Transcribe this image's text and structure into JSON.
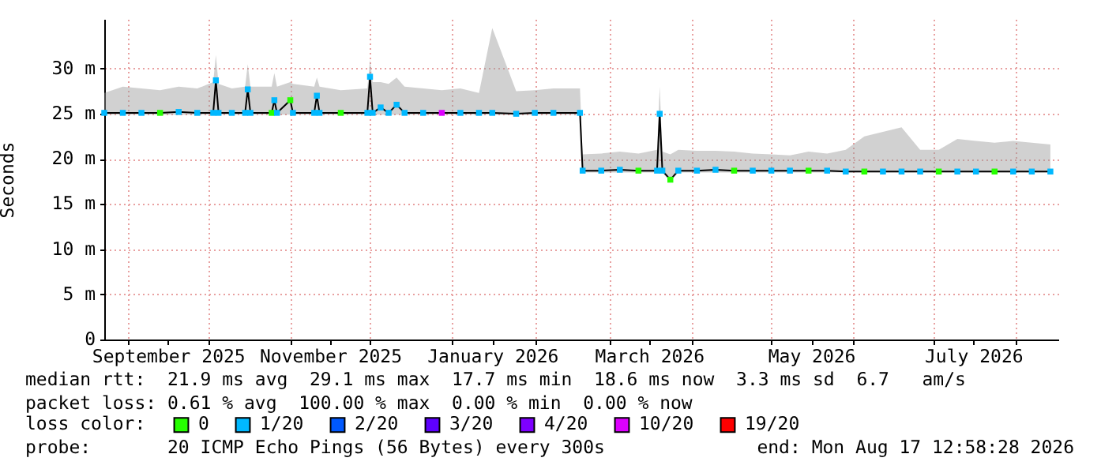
{
  "chart_data": {
    "type": "line",
    "ylabel": "Seconds",
    "x": [
      "2025-08-23",
      "2025-08-30",
      "2025-09-06",
      "2025-09-13",
      "2025-09-20",
      "2025-09-27",
      "2025-10-03",
      "2025-10-04",
      "2025-10-05",
      "2025-10-10",
      "2025-10-15",
      "2025-10-16",
      "2025-10-17",
      "2025-10-25",
      "2025-10-26",
      "2025-10-27",
      "2025-11-01",
      "2025-11-02",
      "2025-11-10",
      "2025-11-11",
      "2025-11-12",
      "2025-11-20",
      "2025-11-30",
      "2025-12-01",
      "2025-12-02",
      "2025-12-05",
      "2025-12-08",
      "2025-12-11",
      "2025-12-14",
      "2025-12-21",
      "2025-12-28",
      "2026-01-04",
      "2026-01-11",
      "2026-01-16",
      "2026-01-25",
      "2026-02-01",
      "2026-02-08",
      "2026-02-18",
      "2026-02-19",
      "2026-02-26",
      "2026-03-05",
      "2026-03-12",
      "2026-03-19",
      "2026-03-20",
      "2026-03-21",
      "2026-03-24",
      "2026-03-27",
      "2026-04-03",
      "2026-04-10",
      "2026-04-17",
      "2026-04-24",
      "2026-05-01",
      "2026-05-08",
      "2026-05-15",
      "2026-05-22",
      "2026-05-29",
      "2026-06-05",
      "2026-06-12",
      "2026-06-19",
      "2026-06-26",
      "2026-07-03",
      "2026-07-10",
      "2026-07-17",
      "2026-07-24",
      "2026-07-31",
      "2026-08-07",
      "2026-08-14"
    ],
    "series": [
      {
        "type": "line",
        "color": "#000000",
        "marker": "none",
        "values": [
          25.1,
          25.1,
          25.1,
          25.1,
          25.2,
          25.1,
          25.1,
          28.7,
          25.1,
          25.1,
          25.1,
          27.7,
          25.1,
          25.1,
          26.5,
          25.1,
          26.5,
          25.1,
          25.1,
          27.0,
          25.1,
          25.1,
          25.1,
          29.1,
          25.1,
          25.7,
          25.1,
          26.0,
          25.1,
          25.1,
          25.1,
          25.1,
          25.1,
          25.1,
          25.0,
          25.1,
          25.1,
          25.1,
          18.7,
          18.7,
          18.8,
          18.7,
          18.7,
          25.0,
          18.7,
          17.7,
          18.7,
          18.7,
          18.8,
          18.7,
          18.7,
          18.7,
          18.7,
          18.7,
          18.7,
          18.6,
          18.6,
          18.6,
          18.6,
          18.6,
          18.6,
          18.6,
          18.6,
          18.6,
          18.6,
          18.6,
          18.6
        ],
        "lower": [
          24.9,
          24.9,
          24.9,
          24.9,
          24.9,
          24.9,
          24.9,
          24.9,
          24.9,
          24.9,
          24.9,
          24.9,
          24.9,
          24.9,
          24.9,
          24.9,
          24.9,
          24.9,
          24.9,
          24.9,
          24.9,
          24.9,
          24.9,
          24.9,
          24.9,
          24.9,
          24.9,
          24.9,
          24.9,
          24.9,
          24.9,
          24.9,
          24.9,
          24.9,
          24.9,
          24.9,
          24.9,
          24.9,
          18.5,
          18.5,
          18.5,
          18.5,
          18.5,
          18.5,
          18.5,
          17.5,
          18.5,
          18.5,
          18.5,
          18.5,
          18.5,
          18.5,
          18.5,
          18.5,
          18.5,
          18.5,
          18.5,
          18.5,
          18.5,
          18.5,
          18.5,
          18.5,
          18.5,
          18.5,
          18.5,
          18.5,
          18.5
        ],
        "upper": [
          27.3,
          28.0,
          27.8,
          27.6,
          28.0,
          27.8,
          28.5,
          31.5,
          28.3,
          27.8,
          28.0,
          30.5,
          28.0,
          28.0,
          29.5,
          28.0,
          28.5,
          28.3,
          28.0,
          29.0,
          28.0,
          27.6,
          27.8,
          31.0,
          28.5,
          28.5,
          28.3,
          29.0,
          28.0,
          27.8,
          27.6,
          27.8,
          27.3,
          34.5,
          27.5,
          27.6,
          27.8,
          27.8,
          20.5,
          20.6,
          20.8,
          20.6,
          21.0,
          28.0,
          20.8,
          20.5,
          21.0,
          20.9,
          20.9,
          20.8,
          20.6,
          20.5,
          20.4,
          20.8,
          20.6,
          21.0,
          22.5,
          23.0,
          23.5,
          21.0,
          21.0,
          22.2,
          22.0,
          21.8,
          22.0,
          21.8,
          21.6
        ]
      },
      {
        "type": "scatter",
        "name": "0",
        "color": "#26ff00",
        "x": [
          "2025-09-13",
          "2025-10-25",
          "2025-11-01",
          "2025-11-20",
          "2026-03-12",
          "2026-03-24",
          "2026-04-17",
          "2026-05-15",
          "2026-06-05",
          "2026-07-03",
          "2026-07-24"
        ],
        "values": [
          25.1,
          25.1,
          26.5,
          25.1,
          18.7,
          17.7,
          18.7,
          18.7,
          18.6,
          18.6,
          18.6
        ]
      },
      {
        "type": "scatter",
        "name": "1/20",
        "color": "#00b8ff",
        "x": [
          "2025-08-23",
          "2025-08-30",
          "2025-09-06",
          "2025-09-20",
          "2025-09-27",
          "2025-10-03",
          "2025-10-04",
          "2025-10-05",
          "2025-10-10",
          "2025-10-15",
          "2025-10-16",
          "2025-10-17",
          "2025-10-26",
          "2025-10-27",
          "2025-11-02",
          "2025-11-10",
          "2025-11-11",
          "2025-11-12",
          "2025-11-30",
          "2025-12-01",
          "2025-12-02",
          "2025-12-05",
          "2025-12-08",
          "2025-12-11",
          "2025-12-14",
          "2025-12-21",
          "2026-01-04",
          "2026-01-11",
          "2026-01-16",
          "2026-01-25",
          "2026-02-01",
          "2026-02-08",
          "2026-02-18",
          "2026-02-19",
          "2026-02-26",
          "2026-03-05",
          "2026-03-19",
          "2026-03-20",
          "2026-03-21",
          "2026-03-27",
          "2026-04-03",
          "2026-04-10",
          "2026-04-24",
          "2026-05-01",
          "2026-05-08",
          "2026-05-22",
          "2026-05-29",
          "2026-06-12",
          "2026-06-19",
          "2026-06-26",
          "2026-07-10",
          "2026-07-17",
          "2026-07-31",
          "2026-08-07",
          "2026-08-14"
        ],
        "values": [
          25.1,
          25.1,
          25.1,
          25.2,
          25.1,
          25.1,
          28.7,
          25.1,
          25.1,
          25.1,
          27.7,
          25.1,
          26.5,
          25.1,
          25.1,
          25.1,
          27.0,
          25.1,
          25.1,
          29.1,
          25.1,
          25.7,
          25.1,
          26.0,
          25.1,
          25.1,
          25.1,
          25.1,
          25.1,
          25.0,
          25.1,
          25.1,
          25.1,
          18.7,
          18.7,
          18.8,
          18.7,
          25.0,
          18.7,
          18.7,
          18.7,
          18.8,
          18.7,
          18.7,
          18.7,
          18.7,
          18.6,
          18.6,
          18.6,
          18.6,
          18.6,
          18.6,
          18.6,
          18.6,
          18.6
        ]
      },
      {
        "type": "scatter",
        "name": "2/20",
        "color": "#0059ff",
        "values": [
          null,
          null,
          null,
          null,
          null,
          null,
          null,
          null,
          null,
          null,
          null,
          null,
          null,
          null,
          null,
          null,
          null,
          null,
          null,
          null,
          null,
          null,
          null,
          null,
          null,
          null,
          null,
          null,
          null,
          null,
          null,
          null,
          null,
          null,
          null,
          null,
          null,
          null,
          null,
          null,
          null,
          null,
          null,
          null,
          null,
          null,
          null,
          null,
          null,
          null,
          null,
          null,
          null,
          null,
          null,
          null,
          null,
          null,
          null,
          null,
          null,
          null,
          null,
          null,
          null,
          null,
          null
        ]
      },
      {
        "type": "scatter",
        "name": "3/20",
        "color": "#5e00ff",
        "values": [
          null,
          null,
          null,
          null,
          null,
          null,
          null,
          null,
          null,
          null,
          null,
          null,
          null,
          null,
          null,
          null,
          null,
          null,
          null,
          null,
          null,
          null,
          null,
          null,
          null,
          null,
          null,
          null,
          null,
          null,
          null,
          null,
          null,
          null,
          null,
          null,
          null,
          null,
          null,
          null,
          null,
          null,
          null,
          null,
          null,
          null,
          null,
          null,
          null,
          null,
          null,
          null,
          null,
          null,
          null,
          null,
          null,
          null,
          null,
          null,
          null,
          null,
          null,
          null,
          null,
          null,
          null
        ]
      },
      {
        "type": "scatter",
        "name": "4/20",
        "color": "#7e00ff",
        "values": [
          null,
          null,
          null,
          null,
          null,
          null,
          null,
          null,
          null,
          null,
          null,
          null,
          null,
          null,
          null,
          null,
          null,
          null,
          null,
          null,
          null,
          null,
          null,
          null,
          null,
          null,
          null,
          null,
          null,
          null,
          null,
          null,
          null,
          null,
          null,
          null,
          null,
          null,
          null,
          null,
          null,
          null,
          null,
          null,
          null,
          null,
          null,
          null,
          null,
          null,
          null,
          null,
          null,
          null,
          null,
          null,
          null,
          null,
          null,
          null,
          null,
          null,
          null,
          null,
          null,
          null,
          null
        ]
      },
      {
        "type": "scatter",
        "name": "10/20",
        "color": "#dd00ff",
        "x": [
          "2025-12-28"
        ],
        "values": [
          25.1
        ]
      },
      {
        "type": "scatter",
        "name": "19/20",
        "color": "#ff0000",
        "values": [
          null,
          null,
          null,
          null,
          null,
          null,
          null,
          null,
          null,
          null,
          null,
          null,
          null,
          null,
          null,
          null,
          null,
          null,
          null,
          null,
          null,
          null,
          null,
          null,
          null,
          null,
          null,
          null,
          null,
          null,
          null,
          null,
          null,
          null,
          null,
          null,
          null,
          null,
          null,
          null,
          null,
          null,
          null,
          null,
          null,
          null,
          null,
          null,
          null,
          null,
          null,
          null,
          null,
          null,
          null,
          null,
          null,
          null,
          null,
          null,
          null,
          null,
          null,
          null,
          null,
          null,
          null
        ]
      }
    ],
    "xlim": [
      "2025-08-23",
      "2026-08-17"
    ],
    "xticks": [
      {
        "value": "2025-09-01",
        "label": null
      },
      {
        "value": "2025-10-01",
        "label": null
      },
      {
        "value": "2025-11-01",
        "label": null
      },
      {
        "value": "2025-12-01",
        "label": null
      },
      {
        "value": "2026-01-01",
        "label": null
      },
      {
        "value": "2026-02-01",
        "label": null
      },
      {
        "value": "2026-03-01",
        "label": null
      },
      {
        "value": "2026-04-01",
        "label": null
      },
      {
        "value": "2026-05-01",
        "label": null
      },
      {
        "value": "2026-06-01",
        "label": null
      },
      {
        "value": "2026-07-01",
        "label": null
      },
      {
        "value": "2026-08-01",
        "label": null
      },
      {
        "value": "2025-09-16",
        "label": "September 2025"
      },
      {
        "value": "2025-11-16",
        "label": "November 2025"
      },
      {
        "value": "2026-01-16",
        "label": "January 2026"
      },
      {
        "value": "2026-03-16",
        "label": "March 2026"
      },
      {
        "value": "2026-05-16",
        "label": "May 2026"
      },
      {
        "value": "2026-07-16",
        "label": "July 2026"
      }
    ],
    "ylim": [
      0,
      35.5
    ],
    "yticks": [
      0,
      {
        "value": 5,
        "label": "5 m"
      },
      {
        "value": 10,
        "label": "10 m"
      },
      {
        "value": 15,
        "label": "15 m"
      },
      {
        "value": 20,
        "label": "20 m"
      },
      {
        "value": 25,
        "label": "25 m"
      },
      {
        "value": 30,
        "label": "30 m"
      }
    ],
    "grid": true,
    "marker": "square",
    "legend": "bottom",
    "legend_title": "loss color:",
    "annotations": [
      "median rtt:  21.9 ms avg  29.1 ms max  17.7 ms min  18.6 ms now  3.3 ms sd  6.7   am/s",
      "packet loss: 0.61 % avg  100.00 % max  0.00 % min  0.00 % now",
      "probe:       20 ICMP Echo Pings (56 Bytes) every 300s",
      "end: Mon Aug 17 12:58:28 2026"
    ]
  }
}
